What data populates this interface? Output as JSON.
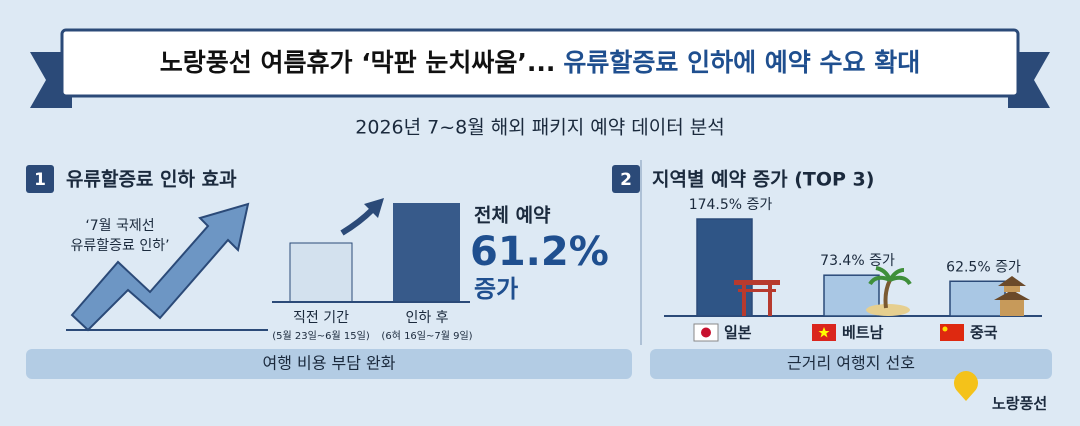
{
  "header": {
    "title": "노랑풍선 여름휴가 ‘막판 눈치싸움’...",
    "title_highlight": "유류할증료 인하에 예약 수요 확대",
    "subtitle": "2026년 7~8월 해외 패키지 예약 데이터 분석"
  },
  "section1": {
    "number": "1",
    "heading": "유류할증료 인하 효과",
    "note": [
      "‘7월 국제선",
      "유류할증료 인하’"
    ],
    "before_label": "직전 기간",
    "before_period": "(5월 23일~6월 15일)",
    "after_label": "인하 후",
    "after_period": "(6혀 16일~7월 9일)",
    "total_label": "전체 예약",
    "total_value": "61.2%",
    "total_suffix": "증가",
    "footer": "여행 비용 부담 완화"
  },
  "section2": {
    "number": "2",
    "heading": "지역별 예약 증가 (TOP 3)",
    "footer": "근거리 여행지 선호"
  },
  "chart_data": {
    "type": "bar",
    "categories": [
      "일본",
      "베트남",
      "중국"
    ],
    "values": [
      174.5,
      73.4,
      62.5
    ],
    "value_labels": [
      "174.5% 증가",
      "73.4% 증가",
      "62.5% 증가"
    ],
    "colors": [
      "#2f5586",
      "#a9c7e4",
      "#a9c7e4"
    ]
  },
  "logo": "노랑풍선"
}
